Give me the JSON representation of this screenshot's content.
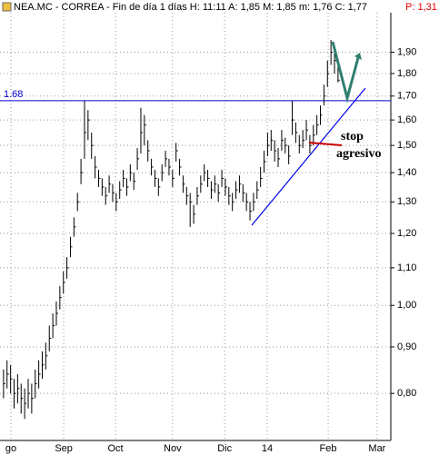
{
  "header": {
    "title": "NEA.MC - CORREA - Fin de día 1 días H: 11:11 A: 1,85 M: 1,85 m: 1,76 C: 1,77",
    "extra": "P: 1,31"
  },
  "chart_data": {
    "type": "ohlc",
    "log_scale": true,
    "grid": true,
    "color": "#000000",
    "xlim": [
      -1,
      110
    ],
    "ylim": [
      0.71,
      2.1
    ],
    "xticks": [
      {
        "value": 2.1,
        "label": "go"
      },
      {
        "value": 17.1,
        "label": "Sep"
      },
      {
        "value": 31.8,
        "label": "Oct"
      },
      {
        "value": 48,
        "label": "Nov"
      },
      {
        "value": 62.8,
        "label": "Dic"
      },
      {
        "value": 74.9,
        "label": "14"
      },
      {
        "value": 92.2,
        "label": "Feb"
      },
      {
        "value": 106.1,
        "label": "Mar"
      }
    ],
    "yticks": [
      {
        "value": 0.8,
        "label": "0,80"
      },
      {
        "value": 0.9,
        "label": "0,90"
      },
      {
        "value": 1.0,
        "label": "1,00"
      },
      {
        "value": 1.1,
        "label": "1,10"
      },
      {
        "value": 1.2,
        "label": "1,20"
      },
      {
        "value": 1.3,
        "label": "1,30"
      },
      {
        "value": 1.4,
        "label": "1,40"
      },
      {
        "value": 1.5,
        "label": "1,50"
      },
      {
        "value": 1.6,
        "label": "1,60"
      },
      {
        "value": 1.7,
        "label": "1,70"
      },
      {
        "value": 1.8,
        "label": "1,80"
      },
      {
        "value": 1.9,
        "label": "1,90"
      }
    ],
    "high": [
      0.85,
      0.87,
      0.86,
      0.83,
      0.84,
      0.82,
      0.81,
      0.83,
      0.82,
      0.85,
      0.87,
      0.89,
      0.91,
      0.95,
      0.98,
      1.01,
      1.05,
      1.09,
      1.13,
      1.19,
      1.25,
      1.33,
      1.45,
      1.68,
      1.64,
      1.55,
      1.46,
      1.41,
      1.38,
      1.35,
      1.39,
      1.36,
      1.33,
      1.37,
      1.41,
      1.38,
      1.43,
      1.4,
      1.49,
      1.65,
      1.62,
      1.52,
      1.45,
      1.41,
      1.38,
      1.43,
      1.48,
      1.45,
      1.41,
      1.51,
      1.45,
      1.39,
      1.35,
      1.33,
      1.29,
      1.35,
      1.39,
      1.43,
      1.41,
      1.37,
      1.39,
      1.36,
      1.41,
      1.38,
      1.35,
      1.33,
      1.37,
      1.39,
      1.36,
      1.33,
      1.3,
      1.33,
      1.37,
      1.42,
      1.48,
      1.55,
      1.56,
      1.52,
      1.49,
      1.56,
      1.53,
      1.5,
      1.68,
      1.59,
      1.54,
      1.56,
      1.6,
      1.54,
      1.58,
      1.62,
      1.66,
      1.75,
      1.86,
      1.96,
      1.92,
      1.85
    ],
    "low": [
      0.79,
      0.81,
      0.8,
      0.77,
      0.78,
      0.76,
      0.75,
      0.77,
      0.76,
      0.79,
      0.81,
      0.83,
      0.85,
      0.89,
      0.92,
      0.95,
      0.99,
      1.03,
      1.07,
      1.13,
      1.19,
      1.27,
      1.36,
      1.45,
      1.52,
      1.45,
      1.38,
      1.35,
      1.32,
      1.29,
      1.33,
      1.3,
      1.27,
      1.31,
      1.35,
      1.32,
      1.37,
      1.34,
      1.41,
      1.47,
      1.5,
      1.44,
      1.39,
      1.35,
      1.32,
      1.37,
      1.42,
      1.39,
      1.35,
      1.44,
      1.39,
      1.33,
      1.29,
      1.22,
      1.23,
      1.29,
      1.33,
      1.37,
      1.35,
      1.31,
      1.33,
      1.3,
      1.35,
      1.32,
      1.29,
      1.27,
      1.31,
      1.33,
      1.3,
      1.27,
      1.24,
      1.27,
      1.31,
      1.35,
      1.4,
      1.46,
      1.48,
      1.44,
      1.42,
      1.48,
      1.47,
      1.43,
      1.54,
      1.51,
      1.47,
      1.49,
      1.52,
      1.47,
      1.5,
      1.54,
      1.58,
      1.66,
      1.74,
      1.84,
      1.8,
      1.76
    ],
    "close": [
      0.82,
      0.84,
      0.83,
      0.8,
      0.81,
      0.79,
      0.78,
      0.8,
      0.79,
      0.82,
      0.84,
      0.86,
      0.88,
      0.92,
      0.95,
      0.98,
      1.02,
      1.06,
      1.1,
      1.16,
      1.22,
      1.3,
      1.4,
      1.55,
      1.6,
      1.5,
      1.42,
      1.38,
      1.35,
      1.32,
      1.36,
      1.33,
      1.3,
      1.34,
      1.38,
      1.35,
      1.4,
      1.37,
      1.45,
      1.55,
      1.58,
      1.48,
      1.42,
      1.38,
      1.35,
      1.4,
      1.45,
      1.42,
      1.38,
      1.48,
      1.42,
      1.36,
      1.32,
      1.3,
      1.26,
      1.32,
      1.36,
      1.4,
      1.38,
      1.34,
      1.36,
      1.33,
      1.38,
      1.35,
      1.32,
      1.3,
      1.34,
      1.36,
      1.33,
      1.3,
      1.27,
      1.3,
      1.34,
      1.38,
      1.44,
      1.5,
      1.52,
      1.48,
      1.45,
      1.52,
      1.5,
      1.46,
      1.6,
      1.55,
      1.5,
      1.52,
      1.56,
      1.5,
      1.54,
      1.58,
      1.62,
      1.7,
      1.8,
      1.9,
      1.86,
      1.77
    ],
    "reference_line": {
      "value": 1.68,
      "label": "1.68",
      "color": "#0000cc"
    },
    "annotation": [
      "stop",
      "agresivo"
    ]
  }
}
